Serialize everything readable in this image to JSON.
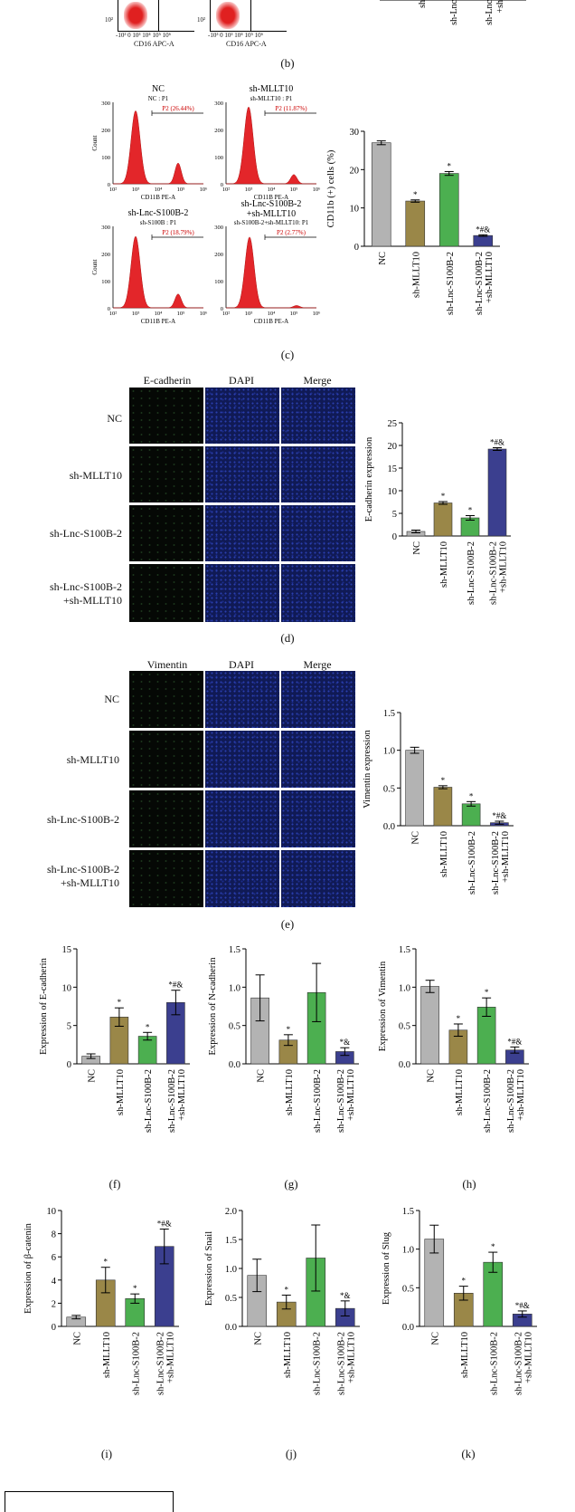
{
  "colors": {
    "nc": "#b3b3b3",
    "mllt": "#9a8748",
    "lnc": "#4caf50",
    "combo": "#3b3f8f",
    "flow": "#e3262a",
    "gate": "#cc0000"
  },
  "panel_b": {
    "xaxis_label_1": "CD16 APC-A",
    "xaxis_label_2": "CD16 APC-A",
    "tick_labels": "-10³ 0 10³ 10⁴ 10⁵ 10⁶",
    "cropped_categories": [
      "sh",
      "sh-Lnc",
      "sh-Lnc",
      "+sh"
    ],
    "label": "(b)"
  },
  "panel_c": {
    "label": "(c)",
    "histograms": [
      {
        "title": "NC",
        "subtitle": "NC : P1",
        "gate": "P2 (26.44%)"
      },
      {
        "title": "sh-MLLT10",
        "subtitle": "sh-MLLT10 : P1",
        "gate": "P2 (11.87%)"
      },
      {
        "title": "sh-Lnc-S100B-2",
        "subtitle": "sh-S100B : P1",
        "gate": "P2 (18.79%)"
      },
      {
        "title": "sh-Lnc-S100B-2",
        "title2": "+sh-MLLT10",
        "subtitle": "sh-S100B-2+sh-MLLT10: P1",
        "gate": "P2 (2.77%)"
      }
    ],
    "hist_ylabel": "Count",
    "hist_xlabel": "CD11B PE-A",
    "hist_xticks": [
      "10²",
      "10³",
      "10⁴",
      "10⁵",
      "10⁶"
    ]
  },
  "panel_d": {
    "label": "(d)",
    "columns": [
      "E-cadherin",
      "DAPI",
      "Merge"
    ],
    "rows": [
      "NC",
      "sh-MLLT10",
      "sh-Lnc-S100B-2",
      "sh-Lnc-S100B-2",
      "+sh-MLLT10"
    ]
  },
  "panel_e": {
    "label": "(e)",
    "columns": [
      "Vimentin",
      "DAPI",
      "Merge"
    ],
    "rows": [
      "NC",
      "sh-MLLT10",
      "sh-Lnc-S100B-2",
      "sh-Lnc-S100B-2",
      "+sh-MLLT10"
    ]
  },
  "small_labels": {
    "f": "(f)",
    "g": "(g)",
    "h": "(h)",
    "i": "(i)",
    "j": "(j)",
    "k": "(k)"
  },
  "chart_data": [
    {
      "id": "c",
      "type": "bar",
      "ylabel": "CD11b (+) cells (%)",
      "ylim": [
        0,
        30
      ],
      "yticks": [
        0,
        10,
        20,
        30
      ],
      "categories": [
        "NC",
        "sh-MLLT10",
        "sh-Lnc-S100B-2",
        "sh-Lnc-S100B-2\n+sh-MLLT10"
      ],
      "values": [
        27,
        11.8,
        19,
        2.8
      ],
      "errors": [
        0.5,
        0.3,
        0.5,
        0.2
      ],
      "annotations": [
        "",
        "*",
        "*",
        "*#&"
      ]
    },
    {
      "id": "d",
      "type": "bar",
      "ylabel": "E-cadherin expression",
      "ylim": [
        0,
        25
      ],
      "yticks": [
        0,
        5,
        10,
        15,
        20,
        25
      ],
      "categories": [
        "NC",
        "sh-MLLT10",
        "sh-Lnc-S100B-2",
        "sh-Lnc-S100B-2\n+sh-MLLT10"
      ],
      "values": [
        1,
        7.3,
        4,
        19.2
      ],
      "errors": [
        0.3,
        0.3,
        0.5,
        0.3
      ],
      "annotations": [
        "",
        "*",
        "*",
        "*#&"
      ]
    },
    {
      "id": "e",
      "type": "bar",
      "ylabel": "Vimentin expression",
      "ylim": [
        0,
        1.5
      ],
      "yticks": [
        "0.0",
        "0.5",
        "1.0",
        "1.5"
      ],
      "categories": [
        "NC",
        "sh-MLLT10",
        "sh-Lnc-S100B-2",
        "sh-Lnc-S100B-2\n+sh-MLLT10"
      ],
      "values": [
        1.0,
        0.51,
        0.29,
        0.04
      ],
      "errors": [
        0.04,
        0.02,
        0.03,
        0.02
      ],
      "annotations": [
        "",
        "*",
        "*",
        "*#&"
      ]
    },
    {
      "id": "f",
      "type": "bar",
      "ylabel": "Expression of E-cadherin",
      "ylim": [
        0,
        15
      ],
      "yticks": [
        0,
        5,
        10,
        15
      ],
      "categories": [
        "NC",
        "sh-MLLT10",
        "sh-Lnc-S100B-2",
        "sh-Lnc-S100B-2\n+sh-MLLT10"
      ],
      "values": [
        1,
        6.1,
        3.6,
        8
      ],
      "errors": [
        0.3,
        1.2,
        0.5,
        1.6
      ],
      "annotations": [
        "",
        "*",
        "*",
        "*#&"
      ]
    },
    {
      "id": "g",
      "type": "bar",
      "ylabel": "Expression of N-cadherin",
      "ylim": [
        0,
        1.5
      ],
      "yticks": [
        "0.0",
        "0.5",
        "1.0",
        "1.5"
      ],
      "categories": [
        "NC",
        "sh-MLLT10",
        "sh-Lnc-S100B-2",
        "sh-Lnc-S100B-2\n+sh-MLLT10"
      ],
      "values": [
        0.86,
        0.31,
        0.93,
        0.16
      ],
      "errors": [
        0.3,
        0.07,
        0.38,
        0.05
      ],
      "annotations": [
        "",
        "*",
        "",
        "*&"
      ]
    },
    {
      "id": "h",
      "type": "bar",
      "ylabel": "Expression of Vimentin",
      "ylim": [
        0,
        1.5
      ],
      "yticks": [
        "0.0",
        "0.5",
        "1.0",
        "1.5"
      ],
      "categories": [
        "NC",
        "sh-MLLT10",
        "sh-Lnc-S100B-2",
        "sh-Lnc-S100B-2\n+sh-MLLT10"
      ],
      "values": [
        1.01,
        0.44,
        0.74,
        0.18
      ],
      "errors": [
        0.08,
        0.08,
        0.12,
        0.04
      ],
      "annotations": [
        "",
        "*",
        "*",
        "*#&"
      ]
    },
    {
      "id": "i",
      "type": "bar",
      "ylabel": "Expression of β-catenin",
      "ylim": [
        0,
        10
      ],
      "yticks": [
        0,
        2,
        4,
        6,
        8,
        10
      ],
      "categories": [
        "NC",
        "sh-MLLT10",
        "sh-Lnc-S100B-2",
        "sh-Lnc-S100B-2\n+sh-MLLT10"
      ],
      "values": [
        0.8,
        4,
        2.4,
        6.9
      ],
      "errors": [
        0.15,
        1.1,
        0.4,
        1.5
      ],
      "annotations": [
        "",
        "*",
        "*",
        "*#&"
      ]
    },
    {
      "id": "j",
      "type": "bar",
      "ylabel": "Expression of Snail",
      "ylim": [
        0,
        2.0
      ],
      "yticks": [
        "0.0",
        "0.5",
        "1.0",
        "1.5",
        "2.0"
      ],
      "categories": [
        "NC",
        "sh-MLLT10",
        "sh-Lnc-S100B-2",
        "sh-Lnc-S100B-2\n+sh-MLLT10"
      ],
      "values": [
        0.88,
        0.42,
        1.18,
        0.31
      ],
      "errors": [
        0.28,
        0.12,
        0.57,
        0.13
      ],
      "annotations": [
        "",
        "*",
        "",
        "*&"
      ]
    },
    {
      "id": "k",
      "type": "bar",
      "ylabel": "Expression of Slug",
      "ylim": [
        0,
        1.5
      ],
      "yticks": [
        "0.0",
        "0.5",
        "1.0",
        "1.5"
      ],
      "categories": [
        "NC",
        "sh-MLLT10",
        "sh-Lnc-S100B-2",
        "sh-Lnc-S100B-2\n+sh-MLLT10"
      ],
      "values": [
        1.13,
        0.43,
        0.83,
        0.16
      ],
      "errors": [
        0.18,
        0.09,
        0.13,
        0.04
      ],
      "annotations": [
        "",
        "*",
        "*",
        "*#&"
      ]
    }
  ]
}
